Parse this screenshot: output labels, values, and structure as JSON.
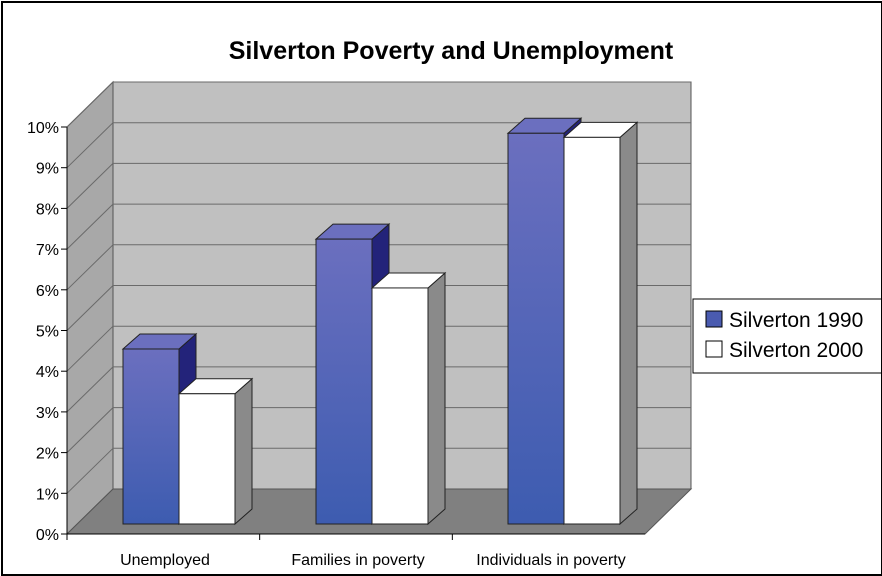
{
  "chart_data": {
    "type": "bar",
    "title": "Silverton Poverty and Unemployment",
    "categories": [
      "Unemployed",
      "Families in poverty",
      "Individuals in poverty"
    ],
    "series": [
      {
        "name": "Silverton 1990",
        "values": [
          4.3,
          7.0,
          9.6
        ],
        "color": "#4a5bb0"
      },
      {
        "name": "Silverton 2000",
        "values": [
          3.2,
          5.8,
          9.5
        ],
        "color": "#ffffff"
      }
    ],
    "y_ticks": [
      "0%",
      "1%",
      "2%",
      "3%",
      "4%",
      "5%",
      "6%",
      "7%",
      "8%",
      "9%",
      "10%"
    ],
    "ylim": [
      0,
      10
    ],
    "legend_position": "right",
    "grid": true,
    "colors": {
      "wall": "#c0c0c0",
      "floor": "#808080",
      "side_wall": "#a8a8a8",
      "bar_1990_front_top": "#6b6fbf",
      "bar_1990_front_bottom": "#3d5cb0",
      "bar_1990_side": "#23237a",
      "bar_2000_front": "#ffffff",
      "bar_2000_side": "#8a8a8a"
    }
  }
}
